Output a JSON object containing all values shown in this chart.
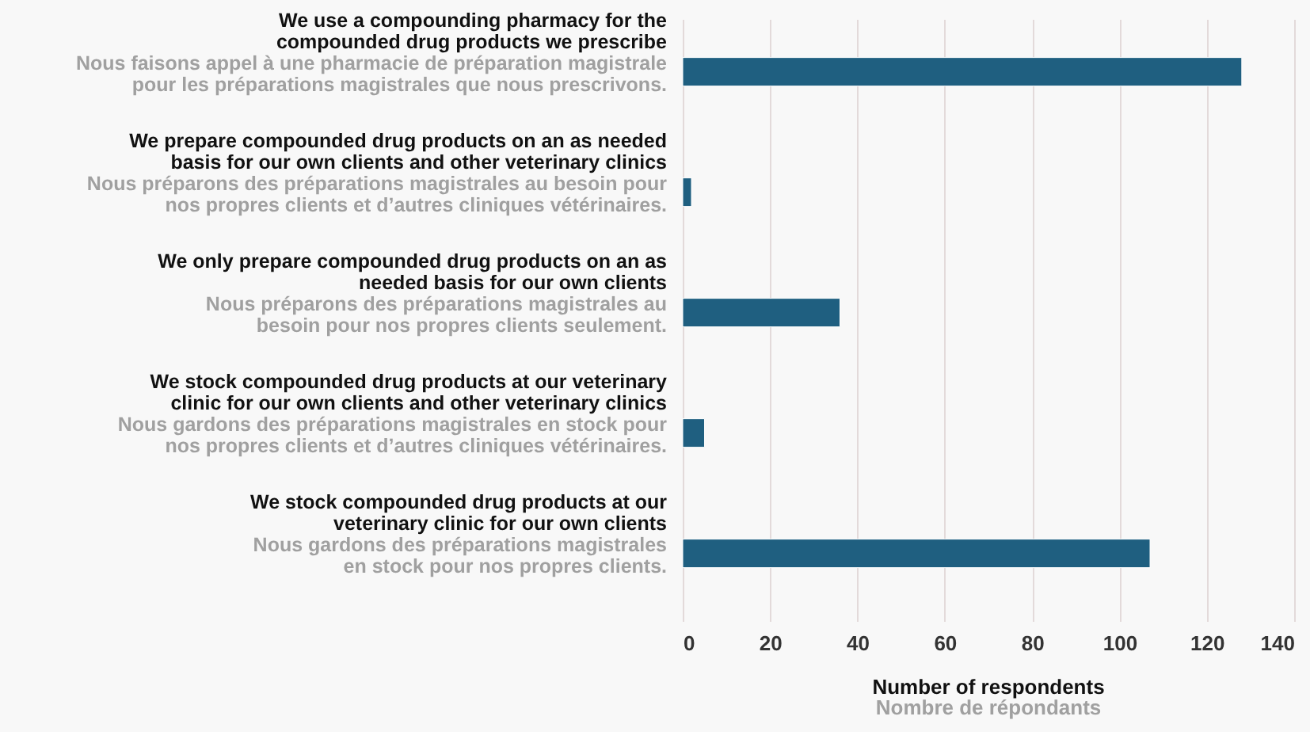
{
  "chart_data": {
    "type": "bar",
    "orientation": "horizontal",
    "categories": [
      "We use a compounding pharmacy for the\ncompounded drug products we prescribe\nNous faisons appel à une pharmacie de préparation magistrale\npour les préparations magistrales que nous prescrivons.",
      "We prepare compounded drug products on an as needed\nbasis for our own clients and other veterinary clinics\nNous préparons des préparations magistrales au besoin pour\nnos propres clients et d’autres cliniques vétérinaires.",
      "We only prepare compounded drug products on an as\nneeded basis for our own clients\nNous préparons des préparations magistrales au\nbesoin pour nos propres clients seulement.",
      "We stock compounded drug products at our veterinary\nclinic for our own clients and other veterinary clinics\nNous gardons des préparations magistrales en stock pour\nnos propres clients et d’autres cliniques vétérinaires.",
      "We stock compounded drug products at our\nveterinary clinic for our own clients\nNous gardons des préparations magistrales\nen stock pour nos propres clients."
    ],
    "values": [
      128,
      2,
      36,
      5,
      107
    ],
    "color": "#1f5f80",
    "xlim": [
      0,
      140
    ],
    "xticks": [
      0,
      20,
      40,
      60,
      80,
      100,
      120,
      140
    ],
    "grid": "x",
    "xlabel": "Number of respondents\nNombre de répondants"
  }
}
